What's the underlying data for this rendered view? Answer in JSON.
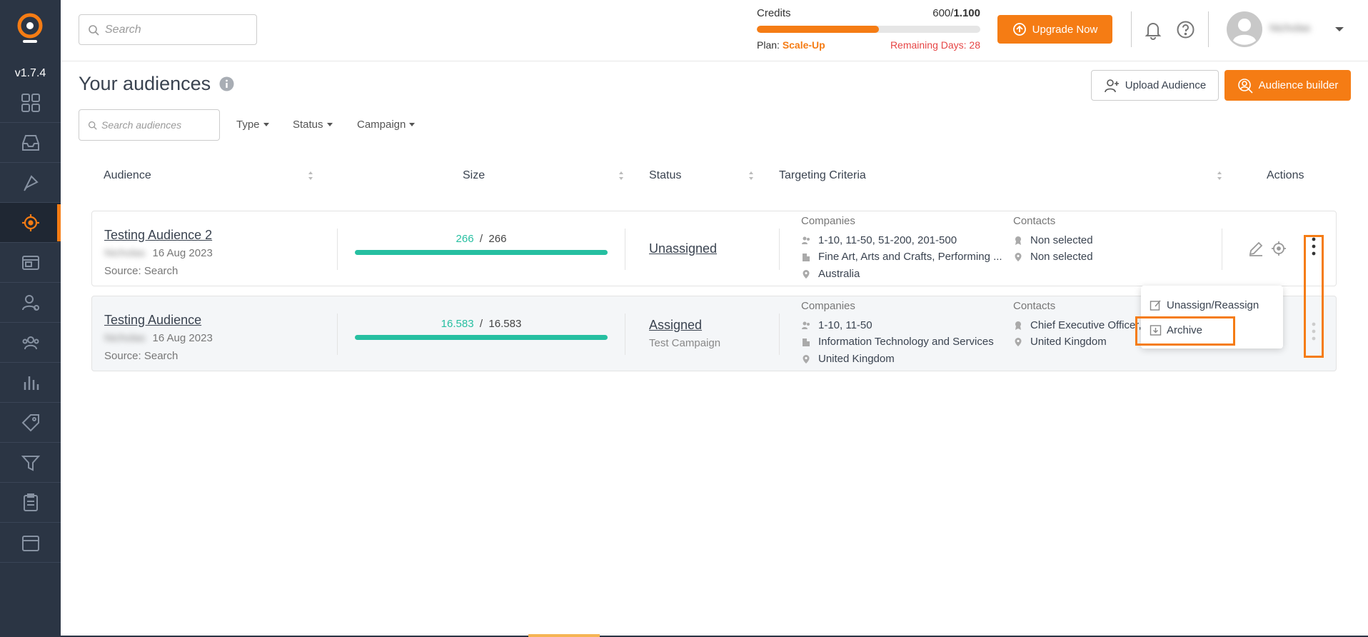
{
  "app": {
    "version": "v1.7.4",
    "colors": {
      "accent": "#f57c14",
      "sidebar": "#2b3544",
      "success": "#26bfa1",
      "danger": "#e64545"
    }
  },
  "sidebar": {
    "items": [
      {
        "name": "dashboard-icon",
        "active": false
      },
      {
        "name": "inbox-icon",
        "active": false
      },
      {
        "name": "rocket-icon",
        "active": false
      },
      {
        "name": "target-icon",
        "active": true
      },
      {
        "name": "campaigns-icon",
        "active": false
      },
      {
        "name": "contacts-icon",
        "active": false
      },
      {
        "name": "team-icon",
        "active": false
      },
      {
        "name": "analytics-icon",
        "active": false
      },
      {
        "name": "tag-icon",
        "active": false
      },
      {
        "name": "funnel-icon",
        "active": false
      },
      {
        "name": "clipboard-icon",
        "active": false
      },
      {
        "name": "calendar-icon",
        "active": false
      }
    ]
  },
  "header": {
    "search_placeholder": "Search",
    "credits_label": "Credits",
    "credits_used": "600",
    "credits_total": "1.100",
    "credits_fraction": 0.545,
    "plan_label": "Plan:",
    "plan_value": "Scale-Up",
    "remaining": "Remaining Days: 28",
    "upgrade_label": "Upgrade Now",
    "username": "Nicholas"
  },
  "page": {
    "title": "Your audiences",
    "upload_label": "Upload Audience",
    "builder_label": "Audience builder",
    "search_placeholder": "Search audiences",
    "filters": [
      "Type",
      "Status",
      "Campaign"
    ]
  },
  "table": {
    "headers": {
      "audience": "Audience",
      "size": "Size",
      "status": "Status",
      "criteria": "Targeting Criteria",
      "actions": "Actions"
    },
    "rows": [
      {
        "name": "Testing Audience 2",
        "owner": "Nicholas",
        "date": "16 Aug 2023",
        "source": "Source: Search",
        "size_matched": "266",
        "size_sep": "/",
        "size_total": "266",
        "status": "Unassigned",
        "campaign": "",
        "companies_label": "Companies",
        "companies": [
          "1-10, 11-50, 51-200, 201-500",
          "Fine Art, Arts and Crafts, Performing ...",
          "Australia"
        ],
        "contacts_label": "Contacts",
        "contacts": [
          "Non selected",
          "Non selected"
        ]
      },
      {
        "name": "Testing Audience",
        "owner": "Nicholas",
        "date": "16 Aug 2023",
        "source": "Source: Search",
        "size_matched": "16.583",
        "size_sep": "/",
        "size_total": "16.583",
        "status": "Assigned",
        "campaign": "Test Campaign",
        "companies_label": "Companies",
        "companies": [
          "1-10, 11-50",
          "Information Technology and Services",
          "United Kingdom"
        ],
        "contacts_label": "Contacts",
        "contacts": [
          "Chief Executive Officer,",
          "United Kingdom"
        ]
      }
    ]
  },
  "menu": {
    "items": [
      "Unassign/Reassign",
      "Archive"
    ]
  }
}
